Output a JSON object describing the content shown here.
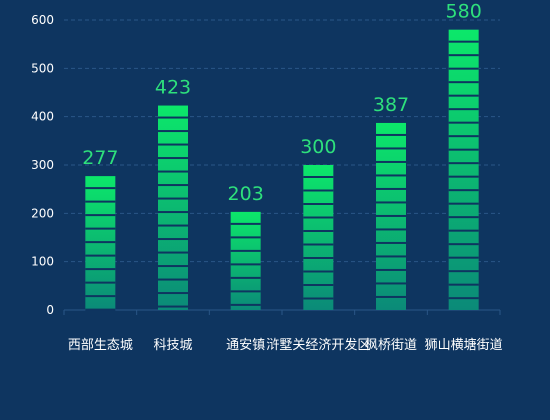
{
  "colors": {
    "background": "#0e3560",
    "bar_top": "#0ce86a",
    "bar_bottom": "#0b8a78",
    "value_label": "#2ee07c",
    "axis_text": "#ffffff",
    "grid": "#2a5687"
  },
  "chart_data": {
    "type": "bar",
    "title": "",
    "xlabel": "",
    "ylabel": "",
    "categories": [
      "西部生态城",
      "科技城",
      "通安镇",
      "浒墅关经济开发区",
      "枫桥街道",
      "狮山横塘街道"
    ],
    "values": [
      277,
      423,
      203,
      300,
      387,
      580
    ],
    "ylim": [
      0,
      600
    ],
    "yticks": [
      "0",
      "100",
      "200",
      "300",
      "400",
      "500",
      "600"
    ],
    "grid": true,
    "legend": "none",
    "data_labels": true
  }
}
